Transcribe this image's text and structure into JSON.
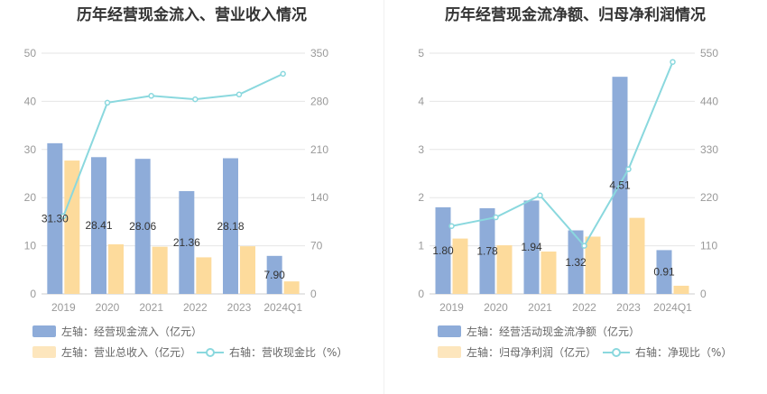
{
  "colors": {
    "bar_primary": "#8eacd9",
    "bar_secondary": "#fddb9c",
    "line": "#8ad8de",
    "grid": "#e6e6e6",
    "axis_text": "#999999",
    "label_text": "#333333"
  },
  "chart_data": [
    {
      "type": "bar",
      "title": "历年经营现金流入、营业收入情况",
      "categories": [
        "2019",
        "2020",
        "2021",
        "2022",
        "2023",
        "2024Q1"
      ],
      "left_axis": {
        "ticks": [
          "0",
          "10",
          "20",
          "30",
          "40",
          "50"
        ],
        "min": 0,
        "max": 50
      },
      "right_axis": {
        "ticks": [
          "0",
          "70",
          "140",
          "210",
          "280",
          "350"
        ],
        "min": 0,
        "max": 350
      },
      "grid": true,
      "legend_position": "bottom",
      "series": [
        {
          "name": "左轴：经营现金流入（亿元）",
          "kind": "bar",
          "axis": "left",
          "color": "#8eacd9",
          "values": [
            31.3,
            28.41,
            28.06,
            21.36,
            28.18,
            7.9
          ],
          "labels": [
            "31.30",
            "28.41",
            "28.06",
            "21.36",
            "28.18",
            "7.90"
          ]
        },
        {
          "name": "左轴：营业总收入（亿元）",
          "kind": "bar",
          "axis": "left",
          "color": "#fddb9c",
          "values": [
            27.7,
            10.3,
            9.8,
            7.6,
            9.9,
            2.6
          ]
        },
        {
          "name": "右轴：营收现金比（%）",
          "kind": "line",
          "axis": "right",
          "color": "#8ad8de",
          "values": [
            113,
            278,
            288,
            283,
            290,
            320
          ]
        }
      ]
    },
    {
      "type": "bar",
      "title": "历年经营现金流净额、归母净利润情况",
      "categories": [
        "2019",
        "2020",
        "2021",
        "2022",
        "2023",
        "2024Q1"
      ],
      "left_axis": {
        "ticks": [
          "0",
          "1",
          "2",
          "3",
          "4",
          "5"
        ],
        "min": 0,
        "max": 5
      },
      "right_axis": {
        "ticks": [
          "0",
          "110",
          "220",
          "330",
          "440",
          "550"
        ],
        "min": 0,
        "max": 550
      },
      "grid": true,
      "legend_position": "bottom",
      "series": [
        {
          "name": "左轴：经营活动现金流净额（亿元）",
          "kind": "bar",
          "axis": "left",
          "color": "#8eacd9",
          "values": [
            1.8,
            1.78,
            1.94,
            1.32,
            4.51,
            0.91
          ],
          "labels": [
            "1.80",
            "1.78",
            "1.94",
            "1.32",
            "4.51",
            "0.91"
          ]
        },
        {
          "name": "左轴：归母净利润（亿元）",
          "kind": "bar",
          "axis": "left",
          "color": "#fddb9c",
          "values": [
            1.15,
            1.01,
            0.88,
            1.19,
            1.58,
            0.17
          ]
        },
        {
          "name": "右轴：净现比（%）",
          "kind": "line",
          "axis": "right",
          "color": "#8ad8de",
          "values": [
            155,
            175,
            225,
            110,
            285,
            530
          ]
        }
      ]
    }
  ]
}
